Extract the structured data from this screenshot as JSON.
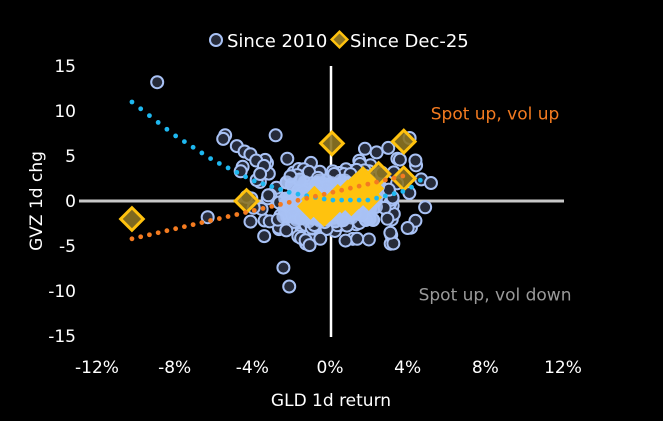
{
  "chart_data": {
    "type": "scatter",
    "title": "",
    "xlabel": "GLD 1d return",
    "ylabel": "GVZ 1d chg",
    "xlim": [
      -0.12,
      0.12
    ],
    "ylim": [
      -15,
      15
    ],
    "x_ticks": [
      -0.12,
      -0.08,
      -0.04,
      0,
      0.04,
      0.08,
      0.12
    ],
    "x_tick_labels": [
      "-12%",
      "-8%",
      "-4%",
      "0%",
      "4%",
      "8%",
      "12%"
    ],
    "y_ticks": [
      15,
      10,
      5,
      0,
      -5,
      -10,
      -15
    ],
    "y_tick_labels": [
      "15",
      "10",
      "5",
      "0",
      "-5",
      "-10",
      "-15"
    ],
    "grid": false,
    "legend": {
      "placement": "top-center",
      "entries": [
        "Since 2010",
        "Since Dec-25"
      ]
    },
    "annotations": [
      {
        "text": "Spot up, vol up",
        "color": "#F47B20",
        "x": 0.085,
        "y": 9.7
      },
      {
        "text": "Spot up, vol down",
        "color": "#9A9A9A",
        "x": 0.085,
        "y": -10.4
      }
    ],
    "colors": {
      "since2010_stroke": "#A9C2F5",
      "since2010_fill": "#262B3A",
      "sinceDec25_stroke": "#FFC20E",
      "sinceDec25_fill": "#8C7424",
      "trend2010": "#1EB8F0",
      "trendDec25": "#F47B20",
      "axis": "#C8C8C8"
    },
    "series": [
      {
        "name": "Since 2010",
        "marker": "circle",
        "outliers": [
          [
            -0.089,
            13.2
          ],
          [
            -0.054,
            7.3
          ],
          [
            -0.055,
            6.9
          ],
          [
            -0.048,
            6.1
          ],
          [
            -0.044,
            5.5
          ],
          [
            -0.041,
            5.2
          ],
          [
            -0.038,
            4.5
          ],
          [
            -0.034,
            3.9
          ],
          [
            -0.045,
            3.8
          ],
          [
            -0.046,
            3.3
          ],
          [
            -0.036,
            3.0
          ],
          [
            -0.028,
            7.3
          ],
          [
            -0.022,
            4.7
          ],
          [
            -0.063,
            -1.8
          ],
          [
            -0.024,
            -7.4
          ],
          [
            -0.021,
            -9.5
          ],
          [
            0.018,
            5.8
          ],
          [
            0.024,
            5.4
          ],
          [
            0.03,
            5.9
          ],
          [
            0.036,
            4.6
          ],
          [
            0.041,
            7.0
          ],
          [
            0.044,
            4.5
          ],
          [
            0.047,
            2.4
          ],
          [
            0.049,
            -0.7
          ],
          [
            0.044,
            -2.2
          ],
          [
            0.04,
            -3.0
          ],
          [
            0.052,
            2.0
          ],
          [
            -0.005,
            -4.2
          ],
          [
            0.008,
            -4.4
          ],
          [
            0.014,
            -4.2
          ]
        ],
        "cluster": {
          "center": [
            0.0,
            0.0
          ],
          "x_spread": 0.018,
          "y_spread": 1.6,
          "count": 420
        }
      },
      {
        "name": "Since Dec-25",
        "marker": "diamond",
        "values": [
          [
            -0.102,
            -2.0
          ],
          [
            -0.043,
            0.0
          ],
          [
            0.001,
            6.4
          ],
          [
            0.038,
            6.6
          ],
          [
            0.038,
            2.5
          ],
          [
            0.025,
            3.0
          ],
          [
            0.017,
            2.4
          ],
          [
            0.021,
            1.4
          ],
          [
            0.013,
            1.6
          ],
          [
            0.009,
            0.9
          ],
          [
            0.004,
            0.4
          ],
          [
            0.0,
            -0.8
          ],
          [
            -0.005,
            -1.0
          ],
          [
            -0.01,
            -0.6
          ],
          [
            0.006,
            0.1
          ],
          [
            0.015,
            0.6
          ],
          [
            -0.003,
            -1.4
          ],
          [
            0.02,
            0.4
          ],
          [
            0.011,
            -0.2
          ],
          [
            -0.008,
            0.2
          ]
        ]
      }
    ],
    "trendlines": [
      {
        "name": "Since 2010 trend",
        "type": "polynomial",
        "x_range": [
          -0.102,
          0.05
        ],
        "points": [
          [
            -0.102,
            11.0
          ],
          [
            -0.08,
            7.3
          ],
          [
            -0.06,
            4.5
          ],
          [
            -0.04,
            2.3
          ],
          [
            -0.02,
            0.9
          ],
          [
            0.0,
            0.1
          ],
          [
            0.02,
            0.1
          ],
          [
            0.04,
            1.2
          ],
          [
            0.05,
            2.9
          ]
        ]
      },
      {
        "name": "Since Dec-25 trend",
        "type": "linear",
        "x_range": [
          -0.102,
          0.04
        ],
        "points": [
          [
            -0.102,
            -4.2
          ],
          [
            0.04,
            2.9
          ]
        ]
      }
    ]
  }
}
